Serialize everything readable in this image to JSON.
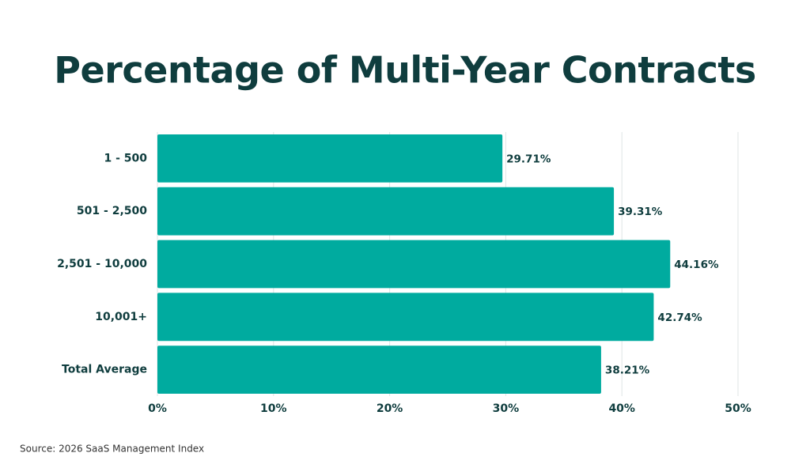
{
  "chart_data": {
    "type": "bar",
    "orientation": "horizontal",
    "title": "Percentage of Multi-Year Contracts",
    "categories": [
      "1 - 500",
      "501 - 2,500",
      "2,501 - 10,000",
      "10,001+",
      "Total Average"
    ],
    "values": [
      29.71,
      39.31,
      44.16,
      42.74,
      38.21
    ],
    "value_labels": [
      "29.71%",
      "39.31%",
      "44.16%",
      "42.74%",
      "38.21%"
    ],
    "color": "#00ab9f",
    "xlim": [
      0,
      50
    ],
    "xticks": [
      {
        "value": 0,
        "label": "0%"
      },
      {
        "value": 10,
        "label": "10%"
      },
      {
        "value": 20,
        "label": "20%"
      },
      {
        "value": 30,
        "label": "30%"
      },
      {
        "value": 40,
        "label": "40%"
      },
      {
        "value": 50,
        "label": "50%"
      }
    ],
    "grid": true,
    "source": "Source: 2026 SaaS Management Index"
  }
}
